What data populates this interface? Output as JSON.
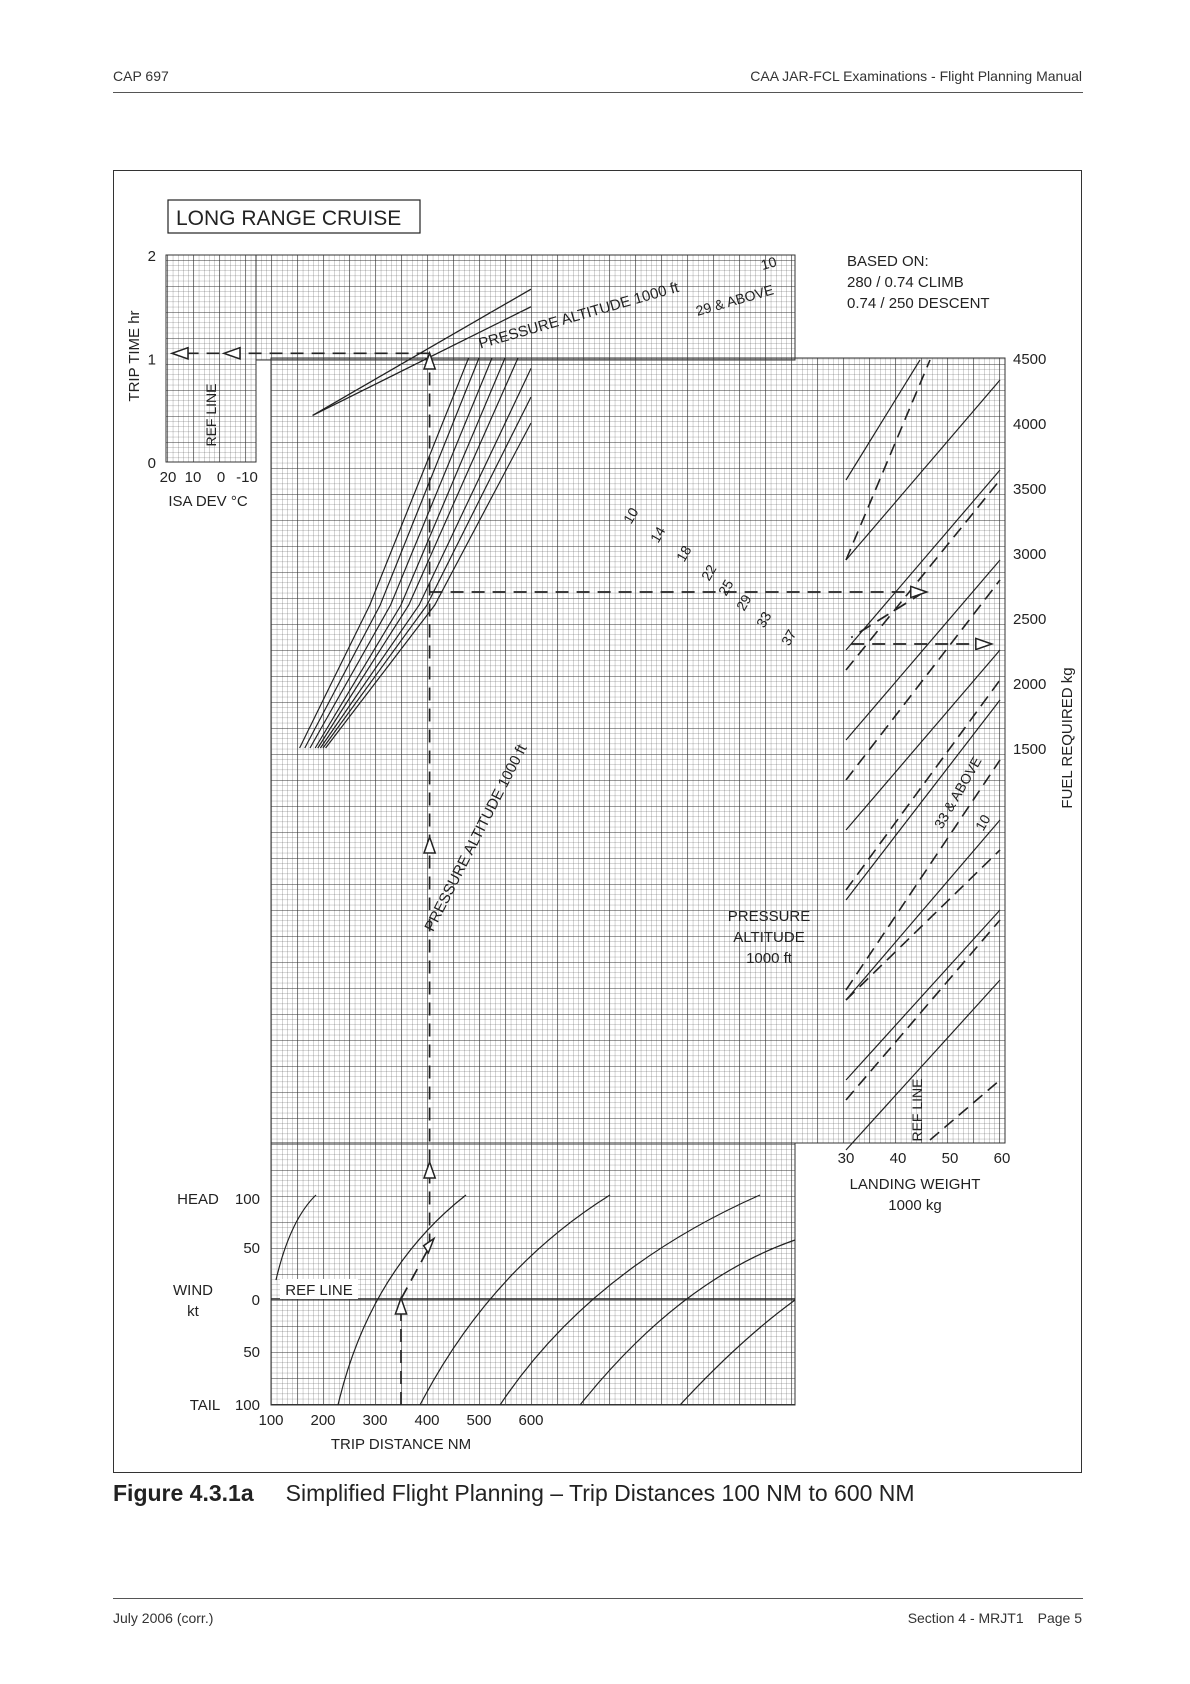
{
  "header": {
    "left": "CAP 697",
    "right": "CAA JAR-FCL Examinations - Flight Planning Manual"
  },
  "footer": {
    "left": "July 2006 (corr.)",
    "section": "Section 4 - MRJT1",
    "page": "Page 5"
  },
  "caption": {
    "number": "Figure 4.3.1a",
    "text": "Simplified Flight Planning – Trip Distances 100 NM to 600 NM"
  },
  "chart_data": {
    "type": "line",
    "title": "LONG RANGE CRUISE",
    "based_on": [
      "BASED ON:",
      "280 / 0.74 CLIMB",
      "0.74 / 250 DESCENT"
    ],
    "x": {
      "label": "TRIP DISTANCE  NM",
      "ticks": [
        "100",
        "200",
        "300",
        "400",
        "500",
        "600"
      ],
      "range": [
        100,
        600
      ]
    },
    "fuel_axis": {
      "label": "FUEL REQUIRED  kg",
      "ticks": [
        "1500",
        "2000",
        "2500",
        "3000",
        "3500",
        "4000",
        "4500"
      ],
      "range": [
        1500,
        4500
      ]
    },
    "time_axis": {
      "label": "TRIP TIME  hr",
      "ticks": [
        "0",
        "1",
        "2"
      ],
      "range": [
        0,
        2
      ]
    },
    "isa_axis": {
      "label": "ISA DEV °C",
      "ticks": [
        "20",
        "10",
        "0",
        "-10"
      ]
    },
    "weight_axis": {
      "label_line1": "LANDING WEIGHT",
      "label_line2": "1000 kg",
      "ticks": [
        "30",
        "40",
        "50",
        "60"
      ],
      "range": [
        30,
        60
      ]
    },
    "wind_axis": {
      "head": "HEAD",
      "wind": "WIND",
      "unit": "kt",
      "tail": "TAIL",
      "ticks": [
        "100",
        "50",
        "0",
        "50",
        "100"
      ],
      "ref_line": "REF LINE"
    },
    "time_panel": {
      "label": "PRESSURE ALTITUDE  1000 ft",
      "ref_line": "REF LINE",
      "lines": [
        {
          "name": "10",
          "points": [
            [
              180,
              0.45
            ],
            [
              600,
              1.67
            ]
          ]
        },
        {
          "name": "29 & ABOVE",
          "points": [
            [
              180,
              0.45
            ],
            [
              600,
              1.5
            ]
          ]
        }
      ]
    },
    "fuel_panel": {
      "label": "PRESSURE ALTITUDE  1000 ft",
      "altitudes": [
        "10",
        "14",
        "18",
        "22",
        "25",
        "29",
        "33",
        "37"
      ],
      "series": [
        {
          "name": "10",
          "points": [
            [
              155,
              1500
            ],
            [
              290,
              2600
            ],
            [
              480,
              4500
            ]
          ]
        },
        {
          "name": "14",
          "points": [
            [
              165,
              1500
            ],
            [
              310,
              2600
            ],
            [
              500,
              4500
            ]
          ]
        },
        {
          "name": "18",
          "points": [
            [
              175,
              1500
            ],
            [
              330,
              2600
            ],
            [
              525,
              4500
            ]
          ]
        },
        {
          "name": "22",
          "points": [
            [
              185,
              1500
            ],
            [
              350,
              2600
            ],
            [
              550,
              4500
            ]
          ]
        },
        {
          "name": "25",
          "points": [
            [
              190,
              1500
            ],
            [
              365,
              2600
            ],
            [
              575,
              4500
            ]
          ]
        },
        {
          "name": "29",
          "points": [
            [
              195,
              1500
            ],
            [
              385,
              2600
            ],
            [
              600,
              4420
            ]
          ]
        },
        {
          "name": "33",
          "points": [
            [
              200,
              1500
            ],
            [
              400,
              2600
            ],
            [
              600,
              4200
            ]
          ]
        },
        {
          "name": "37",
          "points": [
            [
              205,
              1500
            ],
            [
              415,
              2600
            ],
            [
              600,
              4000
            ]
          ]
        }
      ]
    },
    "landing_weight_panel": {
      "pressure_label": [
        "PRESSURE",
        "ALTITUDE",
        "1000 ft"
      ],
      "ref_line": "REF LINE",
      "curve_labels": [
        "33 & ABOVE",
        "10"
      ]
    },
    "worked_example": {
      "distance_nm": 350,
      "wind_kt": 50,
      "ground_distance_nm": 405,
      "fuel_kg": 2700,
      "landing_weight_t": 57,
      "fuel_at_weight_kg": 2300,
      "trip_time_hr": 1.05
    }
  }
}
